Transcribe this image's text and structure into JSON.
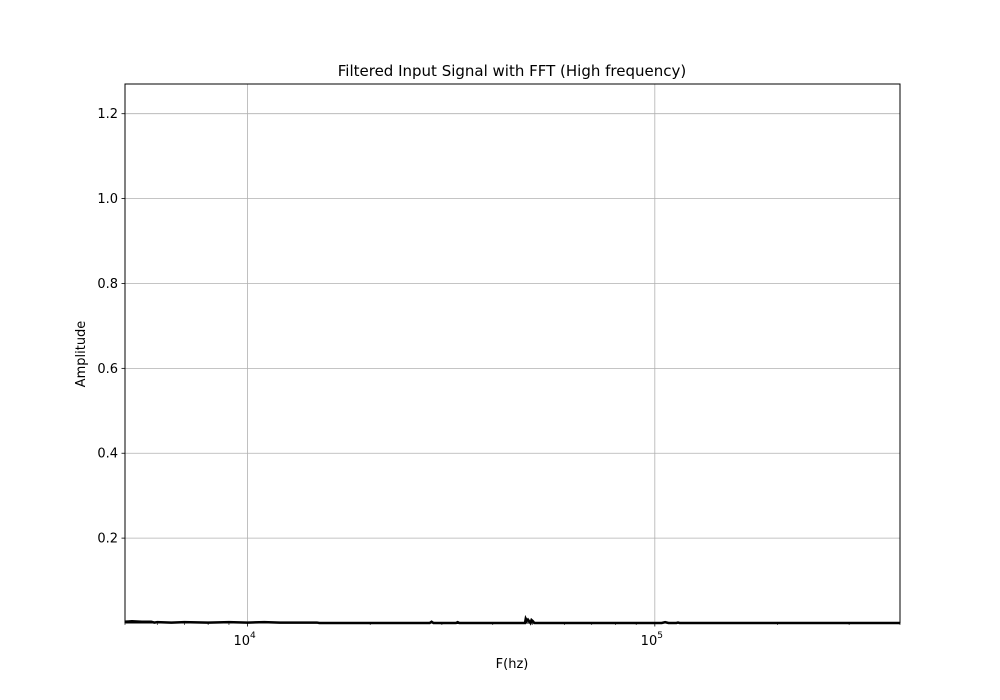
{
  "chart_data": {
    "type": "line",
    "title": "Filtered Input Signal with FFT (High frequency)",
    "xlabel": "F(hz)",
    "ylabel": "Amplitude",
    "xscale": "log",
    "xlim": [
      5000,
      400000
    ],
    "ylim": [
      0,
      1.27
    ],
    "grid": true,
    "x_major_ticks": [
      {
        "value": 10000,
        "base": "10",
        "exp": "4"
      },
      {
        "value": 100000,
        "base": "10",
        "exp": "5"
      }
    ],
    "y_ticks": [
      {
        "value": 0.2,
        "label": "0.2"
      },
      {
        "value": 0.4,
        "label": "0.4"
      },
      {
        "value": 0.6,
        "label": "0.6"
      },
      {
        "value": 0.8,
        "label": "0.8"
      },
      {
        "value": 1.0,
        "label": "1.0"
      },
      {
        "value": 1.2,
        "label": "1.2"
      }
    ],
    "series_color": "#000000",
    "series": [
      {
        "x": [
          5000,
          5200,
          5500,
          5800,
          5900,
          6000,
          6500,
          7000,
          8000,
          9000,
          10000,
          11000,
          12000,
          13000,
          14000,
          14800,
          15000,
          20000,
          25000,
          28000,
          28300,
          28600,
          29000,
          32500,
          32800,
          33100,
          40000,
          48000,
          48200,
          48500,
          48800,
          49500,
          49800,
          50200,
          50600,
          60000,
          80000,
          100000,
          104000,
          106000,
          108000,
          113000,
          114000,
          115000,
          150000,
          200000,
          300000,
          400000
        ],
        "y": [
          0.003,
          0.004,
          0.003,
          0.003,
          0.001,
          0.002,
          0.001,
          0.002,
          0.001,
          0.002,
          0.001,
          0.002,
          0.001,
          0.001,
          0.001,
          0.001,
          0.0,
          0.0,
          0.0,
          0.0,
          0.003,
          0.0,
          0.0,
          0.0,
          0.002,
          0.0,
          0.0,
          0.0,
          0.01,
          0.005,
          0.008,
          0.0,
          0.007,
          0.004,
          0.0,
          0.0,
          0.0,
          0.0,
          0.0,
          0.002,
          0.0,
          0.0,
          0.001,
          0.0,
          0.0,
          0.0,
          0.0,
          0.0
        ]
      }
    ]
  }
}
